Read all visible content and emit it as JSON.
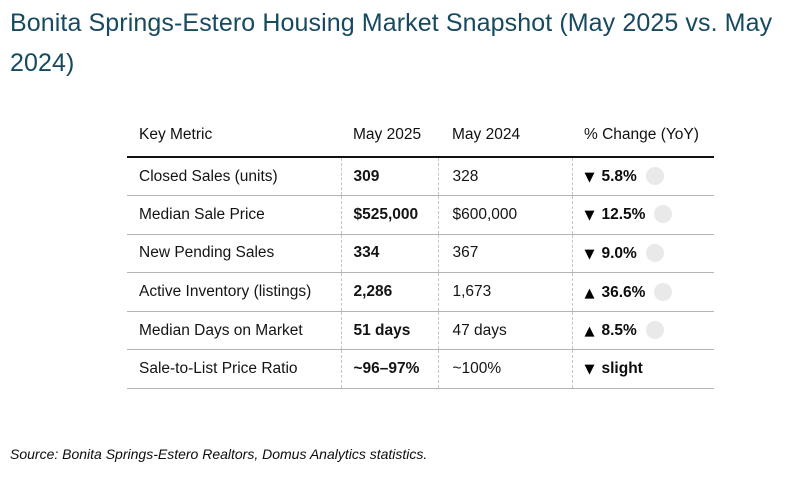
{
  "title": "Bonita Springs-Estero Housing Market Snapshot (May 2025 vs. May 2024)",
  "source": "Source: Bonita Springs-Estero Realtors, Domus Analytics statistics.",
  "icons": {
    "up_triangle": "▲",
    "down_triangle": "▼",
    "gray_dot": "circle"
  },
  "colors": {
    "title": "#174a61",
    "header_rule": "#111111",
    "row_rule": "#b4b4b4",
    "column_dash": "#c6c6c6",
    "dot": "#e9e9e9",
    "text": "#141414",
    "background": "#ffffff"
  },
  "table": {
    "headers": [
      "Key Metric",
      "May 2025",
      "May 2024",
      "% Change (YoY)"
    ],
    "rows": [
      {
        "metric": "Closed Sales (units)",
        "may2025": "309",
        "may2024": "328",
        "arrow": "▼",
        "change": "5.8%",
        "direction": "down",
        "dot": true
      },
      {
        "metric": "Median Sale Price",
        "may2025": "$525,000",
        "may2024": "$600,000",
        "arrow": "▼",
        "change": "12.5%",
        "direction": "down",
        "dot": true
      },
      {
        "metric": "New Pending Sales",
        "may2025": "334",
        "may2024": "367",
        "arrow": "▼",
        "change": "9.0%",
        "direction": "down",
        "dot": true
      },
      {
        "metric": "Active Inventory (listings)",
        "may2025": "2,286",
        "may2024": "1,673",
        "arrow": "▲",
        "change": "36.6%",
        "direction": "up",
        "dot": true
      },
      {
        "metric": "Median Days on Market",
        "may2025": "51 days",
        "may2024": "47 days",
        "arrow": "▲",
        "change": "8.5%",
        "direction": "up",
        "dot": true
      },
      {
        "metric": "Sale-to-List Price Ratio",
        "may2025": "~96–97%",
        "may2024": "~100%",
        "arrow": "▼",
        "change": "slight",
        "direction": "down",
        "dot": false
      }
    ]
  },
  "chart_data": {
    "type": "table",
    "title": "Bonita Springs-Estero Housing Market Snapshot (May 2025 vs. May 2024)",
    "columns": [
      "Key Metric",
      "May 2025",
      "May 2024",
      "% Change (YoY)"
    ],
    "rows": [
      [
        "Closed Sales (units)",
        "309",
        "328",
        "▼ 5.8%"
      ],
      [
        "Median Sale Price",
        "$525,000",
        "$600,000",
        "▼ 12.5%"
      ],
      [
        "New Pending Sales",
        "334",
        "367",
        "▼ 9.0%"
      ],
      [
        "Active Inventory (listings)",
        "2,286",
        "1,673",
        "▲ 36.6%"
      ],
      [
        "Median Days on Market",
        "51 days",
        "47 days",
        "▲ 8.5%"
      ],
      [
        "Sale-to-List Price Ratio",
        "~96–97%",
        "~100%",
        "▼ slight"
      ]
    ],
    "yoy_change_percent": {
      "closed_sales": -5.8,
      "median_sale_price": -12.5,
      "new_pending_sales": -9.0,
      "active_inventory": 36.6,
      "median_days_on_market": 8.5
    },
    "source": "Source: Bonita Springs-Estero Realtors, Domus Analytics statistics."
  }
}
